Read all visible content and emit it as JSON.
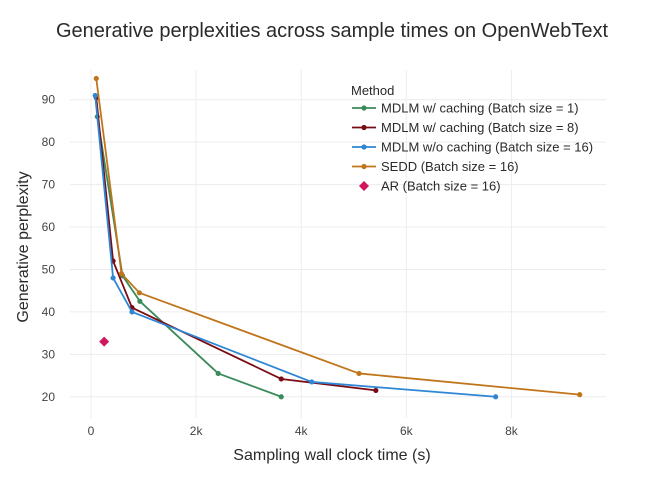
{
  "chart_data": {
    "type": "line",
    "title": "Generative perplexities across sample times on OpenWebText",
    "xlabel": "Sampling wall clock time (s)",
    "ylabel": "Generative perplexity",
    "xlim": [
      -400,
      9800
    ],
    "ylim": [
      15,
      97
    ],
    "x_ticks": [
      0,
      2000,
      4000,
      6000,
      8000
    ],
    "x_tick_labels": [
      "0",
      "2k",
      "4k",
      "6k",
      "8k"
    ],
    "y_ticks": [
      20,
      30,
      40,
      50,
      60,
      70,
      80,
      90
    ],
    "y_tick_labels": [
      "20",
      "30",
      "40",
      "50",
      "60",
      "70",
      "80",
      "90"
    ],
    "grid": true,
    "legend": {
      "title": "Method",
      "position": "top-right"
    },
    "series": [
      {
        "name": "MDLM w/ caching (Batch size = 1)",
        "color": "#3b8a5a",
        "marker": "circle",
        "x": [
          120,
          600,
          930,
          2420,
          3620
        ],
        "y": [
          86,
          48.5,
          42.5,
          25.5,
          20
        ]
      },
      {
        "name": "MDLM w/ caching (Batch size = 8)",
        "color": "#7a0c14",
        "marker": "circle",
        "x": [
          100,
          420,
          780,
          3620,
          5420
        ],
        "y": [
          90.5,
          52,
          41,
          24.2,
          21.5
        ]
      },
      {
        "name": "MDLM w/o caching (Batch size = 16)",
        "color": "#2e86d4",
        "marker": "circle",
        "x": [
          80,
          420,
          780,
          4200,
          7700
        ],
        "y": [
          91,
          48,
          40,
          23.5,
          20
        ]
      },
      {
        "name": "SEDD (Batch size = 16)",
        "color": "#c0751a",
        "marker": "circle",
        "x": [
          100,
          580,
          920,
          5100,
          9300
        ],
        "y": [
          95,
          49,
          44.5,
          25.5,
          20.5
        ]
      },
      {
        "name": "AR (Batch size = 16)",
        "color": "#d0165c",
        "marker": "diamond",
        "x": [
          250
        ],
        "y": [
          33
        ]
      }
    ]
  }
}
